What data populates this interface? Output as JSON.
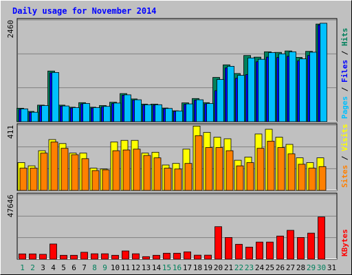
{
  "chart_data": {
    "type": "bar",
    "title": "Daily usage for November 2014",
    "categories": [
      "1",
      "2",
      "3",
      "4",
      "5",
      "6",
      "7",
      "8",
      "9",
      "10",
      "11",
      "12",
      "13",
      "14",
      "15",
      "16",
      "17",
      "18",
      "19",
      "20",
      "21",
      "22",
      "23",
      "24",
      "25",
      "26",
      "27",
      "28",
      "29",
      "30",
      "31"
    ],
    "weekend_days": [
      "1",
      "2",
      "8",
      "9",
      "15",
      "16",
      "22",
      "23",
      "29",
      "30"
    ],
    "colors": {
      "background": "#C0C0C0",
      "title": "#0000FF",
      "hits": "#00805C",
      "files": "#0000FF",
      "pages": "#00C0FF",
      "visits": "#FFFF00",
      "sites": "#FF8000",
      "kbytes": "#FF0000",
      "weekday_label": "#000000",
      "weekend_label": "#00805C"
    },
    "panels": [
      {
        "name": "Hits / Files / Pages",
        "y_max_label": "2460",
        "ylim": [
          0,
          2460
        ],
        "axis_label_parts": [
          {
            "text": "Pages",
            "color": "#00C0FF"
          },
          {
            "text": " / ",
            "color": "#000000"
          },
          {
            "text": "Files",
            "color": "#0000FF"
          },
          {
            "text": " / ",
            "color": "#000000"
          },
          {
            "text": "Hits",
            "color": "#00805C"
          }
        ],
        "series": [
          {
            "name": "Hits",
            "color": "#00805C",
            "values": [
              325,
              250,
              400,
              1225,
              400,
              350,
              460,
              350,
              390,
              470,
              680,
              550,
              425,
              425,
              330,
              265,
              455,
              560,
              460,
              1070,
              1375,
              1165,
              1600,
              1560,
              1690,
              1675,
              1710,
              1555,
              1700,
              2360,
              0
            ]
          },
          {
            "name": "Files",
            "color": "#0000FF",
            "values": [
              300,
              225,
              380,
              1180,
              375,
              330,
              430,
              330,
              360,
              440,
              640,
              520,
              400,
              400,
              310,
              250,
              420,
              520,
              430,
              750,
              1300,
              1050,
              1140,
              1450,
              1560,
              1550,
              1580,
              1470,
              1600,
              2340,
              0
            ]
          },
          {
            "name": "Pages",
            "color": "#00C0FF",
            "values": [
              310,
              230,
              390,
              1190,
              380,
              340,
              440,
              340,
              370,
              450,
              650,
              530,
              410,
              410,
              320,
              260,
              430,
              530,
              440,
              1020,
              1340,
              1120,
              1540,
              1510,
              1670,
              1640,
              1690,
              1520,
              1680,
              2380,
              0
            ]
          }
        ]
      },
      {
        "name": "Visits / Sites",
        "y_max_label": "411",
        "ylim": [
          0,
          411
        ],
        "axis_label_parts": [
          {
            "text": "Sites",
            "color": "#FF8000"
          },
          {
            "text": " / ",
            "color": "#000000"
          },
          {
            "text": "Visits",
            "color": "#FFFF00"
          }
        ],
        "series": [
          {
            "name": "Visits",
            "color": "#FFFF00",
            "values": [
              175,
              155,
              250,
              320,
              295,
              235,
              235,
              140,
              135,
              305,
              315,
              315,
              235,
              240,
              160,
              170,
              260,
              405,
              365,
              335,
              325,
              190,
              210,
              355,
              385,
              335,
              290,
              205,
              175,
              205,
              0
            ]
          },
          {
            "name": "Sites",
            "color": "#FF8000",
            "values": [
              140,
              140,
              235,
              305,
              265,
              225,
              200,
              125,
              130,
              250,
              255,
              260,
              220,
              205,
              140,
              135,
              170,
              345,
              270,
              270,
              250,
              155,
              175,
              265,
              310,
              270,
              230,
              165,
              140,
              150,
              0
            ]
          }
        ]
      },
      {
        "name": "KBytes",
        "y_max_label": "47646",
        "ylim": [
          0,
          47646
        ],
        "axis_label_parts": [
          {
            "text": "KBytes",
            "color": "#FF0000"
          }
        ],
        "series": [
          {
            "name": "KBytes",
            "color": "#FF0000",
            "values": [
              3900,
              3900,
              3600,
              11200,
              2900,
              2900,
              5100,
              4000,
              4000,
              2900,
              6100,
              4000,
              1900,
              2900,
              4400,
              4400,
              5400,
              3000,
              3000,
              24000,
              16000,
              11000,
              8900,
              12600,
              12600,
              17100,
              21300,
              16000,
              19200,
              31100,
              0
            ]
          }
        ]
      }
    ]
  }
}
